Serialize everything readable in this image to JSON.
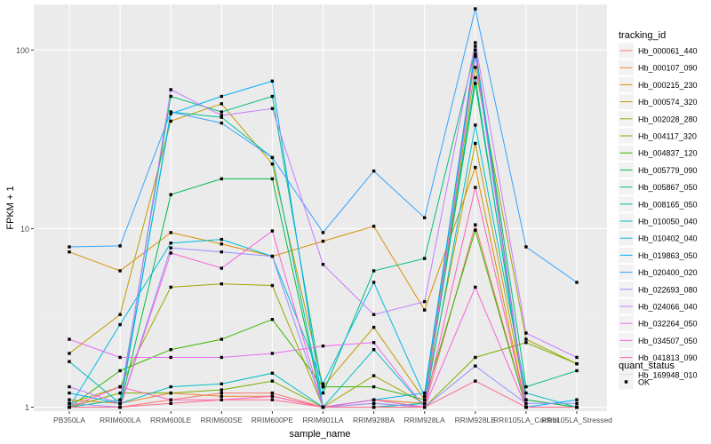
{
  "chart_data": {
    "type": "line",
    "xlabel": "sample_name",
    "ylabel": "FPKM + 1",
    "y_scale": "log10",
    "ylim": [
      0.95,
      180
    ],
    "yticks": [
      1,
      10,
      100
    ],
    "ytick_labels": [
      "1",
      "10",
      "100"
    ],
    "grid": true,
    "legend_position": "right",
    "categories": [
      "PB350LA",
      "RRIM600LA",
      "RRIM600LE",
      "RRIM600SE",
      "RRIM600PE",
      "RRIM901LA",
      "RRIM928BA",
      "RRIM928LA",
      "RRIM928LE",
      "RRII105LA_Control",
      "RRII105LA_Stressed"
    ],
    "color_legend_title": "tracking_id",
    "series": [
      {
        "name": "Hb_000061_440",
        "color": "#F8766D",
        "values": [
          1.0,
          1.0,
          1.1,
          1.2,
          1.2,
          1.0,
          1.05,
          1.0,
          10.5,
          1.0,
          1.0
        ]
      },
      {
        "name": "Hb_000107_090",
        "color": "#EA8331",
        "values": [
          1.1,
          1.05,
          1.2,
          1.15,
          1.15,
          1.0,
          1.1,
          1.05,
          105,
          1.0,
          1.0
        ]
      },
      {
        "name": "Hb_000215_230",
        "color": "#D89000",
        "values": [
          7.4,
          5.8,
          9.5,
          8.2,
          7.0,
          8.5,
          10.3,
          3.5,
          22,
          1.0,
          1.0
        ]
      },
      {
        "name": "Hb_000574_320",
        "color": "#C09B00",
        "values": [
          2.0,
          3.3,
          40,
          50,
          23,
          1.3,
          2.8,
          1.1,
          30,
          1.1,
          1.0
        ]
      },
      {
        "name": "Hb_002028_280",
        "color": "#A3A500",
        "values": [
          1.05,
          1.3,
          4.7,
          4.9,
          4.8,
          1.0,
          1.5,
          1.05,
          80,
          2.4,
          1.75
        ]
      },
      {
        "name": "Hb_004117_320",
        "color": "#7CAE00",
        "values": [
          1.0,
          1.2,
          1.2,
          1.25,
          1.4,
          1.0,
          1.1,
          1.0,
          1.9,
          2.3,
          1.75
        ]
      },
      {
        "name": "Hb_004837_120",
        "color": "#39B600",
        "values": [
          1.0,
          1.6,
          2.1,
          2.4,
          3.1,
          1.3,
          1.3,
          1.1,
          9.8,
          1.0,
          1.0
        ]
      },
      {
        "name": "Hb_005779_090",
        "color": "#00BB4E",
        "values": [
          1.0,
          1.0,
          15.5,
          19,
          19,
          1.0,
          1.0,
          1.05,
          65,
          1.1,
          1.0
        ]
      },
      {
        "name": "Hb_005867_050",
        "color": "#00BF7D",
        "values": [
          1.0,
          1.1,
          55,
          45,
          55,
          1.2,
          5.8,
          6.8,
          100,
          1.3,
          1.6
        ]
      },
      {
        "name": "Hb_008165_050",
        "color": "#00C1A3",
        "values": [
          1.0,
          1.0,
          45,
          42,
          25,
          1.0,
          1.0,
          1.05,
          70,
          1.0,
          1.0
        ]
      },
      {
        "name": "Hb_010050_040",
        "color": "#00BFC4",
        "values": [
          1.8,
          1.05,
          1.3,
          1.35,
          1.55,
          1.0,
          2.1,
          1.0,
          38,
          1.2,
          1.0
        ]
      },
      {
        "name": "Hb_010402_040",
        "color": "#00BAE0",
        "values": [
          1.0,
          2.9,
          8.3,
          8.7,
          7.0,
          1.35,
          5.0,
          1.15,
          100,
          1.0,
          1.0
        ]
      },
      {
        "name": "Hb_019863_050",
        "color": "#00B0F6",
        "values": [
          1.2,
          1.05,
          44,
          55,
          67,
          1.0,
          1.1,
          1.2,
          95,
          1.0,
          1.1
        ]
      },
      {
        "name": "Hb_020400_020",
        "color": "#35A2FF",
        "values": [
          7.9,
          8.0,
          45,
          39,
          25,
          9.5,
          21,
          11.5,
          170,
          7.9,
          5.0
        ]
      },
      {
        "name": "Hb_022693_080",
        "color": "#9590FF",
        "values": [
          1.05,
          1.0,
          7.8,
          7.4,
          7.0,
          1.0,
          1.05,
          1.0,
          1.7,
          1.05,
          1.05
        ]
      },
      {
        "name": "Hb_024066_040",
        "color": "#C77CFF",
        "values": [
          1.3,
          1.05,
          60,
          43,
          47,
          6.3,
          3.3,
          3.9,
          110,
          2.6,
          1.9
        ]
      },
      {
        "name": "Hb_032264_050",
        "color": "#E76BF3",
        "values": [
          2.4,
          1.9,
          1.9,
          1.9,
          2.0,
          2.2,
          2.3,
          1.0,
          92,
          1.0,
          1.0
        ]
      },
      {
        "name": "Hb_034507_050",
        "color": "#FA62DB",
        "values": [
          1.0,
          1.0,
          7.3,
          6.0,
          9.7,
          1.0,
          1.1,
          1.0,
          4.7,
          1.0,
          1.0
        ]
      },
      {
        "name": "Hb_041813_090",
        "color": "#FF62BC",
        "values": [
          1.0,
          1.3,
          1.1,
          1.1,
          1.15,
          1.0,
          1.0,
          1.0,
          17,
          1.0,
          1.0
        ]
      },
      {
        "name": "Hb_169948_010",
        "color": "#FF6C91",
        "values": [
          1.0,
          1.0,
          1.05,
          1.1,
          1.1,
          1.0,
          1.0,
          1.0,
          1.4,
          1.0,
          1.0
        ]
      }
    ],
    "shape_legend_title": "quant_status",
    "shape_legend_entries": [
      {
        "label": "OK",
        "shape": "square"
      }
    ]
  }
}
